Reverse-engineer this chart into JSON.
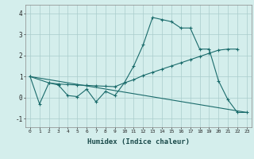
{
  "xlabel": "Humidex (Indice chaleur)",
  "bg_color": "#d4eeec",
  "grid_color": "#aacccc",
  "line_color": "#1a6b6b",
  "xlim": [
    -0.5,
    23.5
  ],
  "ylim": [
    -1.4,
    4.4
  ],
  "yticks": [
    -1,
    0,
    1,
    2,
    3,
    4
  ],
  "xticks": [
    0,
    1,
    2,
    3,
    4,
    5,
    6,
    7,
    8,
    9,
    10,
    11,
    12,
    13,
    14,
    15,
    16,
    17,
    18,
    19,
    20,
    21,
    22,
    23
  ],
  "series": [
    {
      "x": [
        0,
        1,
        2,
        3,
        4,
        5,
        6,
        7,
        8,
        9,
        10,
        11,
        12,
        13,
        14,
        15,
        16,
        17,
        18,
        19,
        20,
        21,
        22,
        23
      ],
      "y": [
        1.0,
        -0.3,
        0.7,
        0.6,
        0.1,
        0.05,
        0.4,
        -0.2,
        0.3,
        0.1,
        0.7,
        1.5,
        2.5,
        3.8,
        3.7,
        3.6,
        3.3,
        3.3,
        2.3,
        2.3,
        0.8,
        -0.1,
        -0.7,
        -0.7
      ],
      "marker": true
    },
    {
      "x": [
        0,
        2,
        3,
        4,
        5,
        6,
        7,
        8,
        9,
        10,
        11,
        12,
        13,
        14,
        15,
        16,
        17,
        18,
        19,
        20,
        21,
        22
      ],
      "y": [
        1.0,
        0.7,
        0.65,
        0.62,
        0.6,
        0.58,
        0.56,
        0.54,
        0.52,
        0.7,
        0.85,
        1.05,
        1.2,
        1.35,
        1.5,
        1.65,
        1.8,
        1.95,
        2.1,
        2.25,
        2.3,
        2.3
      ],
      "marker": true
    },
    {
      "x": [
        0,
        23
      ],
      "y": [
        1.0,
        -0.7
      ],
      "marker": false
    }
  ]
}
